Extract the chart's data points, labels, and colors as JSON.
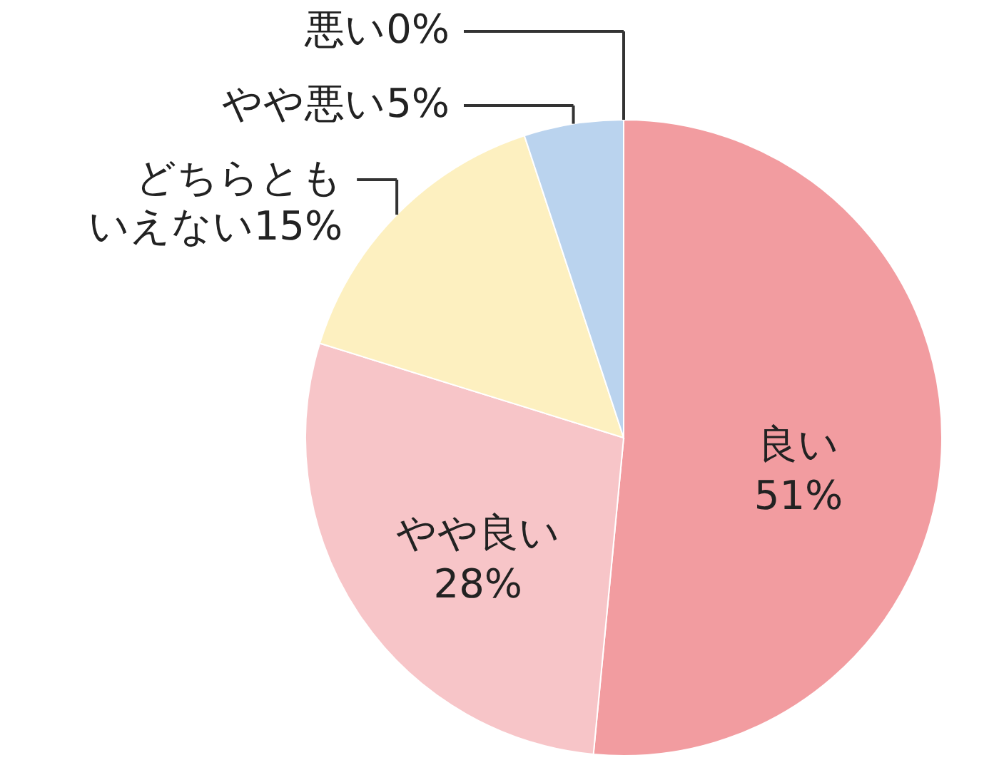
{
  "chart_data": {
    "type": "pie",
    "categories": [
      "良い",
      "やや良い",
      "どちらともいえない",
      "やや悪い",
      "悪い"
    ],
    "values": [
      51,
      28,
      15,
      5,
      0
    ],
    "colors": [
      "#f29ca0",
      "#f7c5c8",
      "#fdf0c0",
      "#bad3ee",
      "#a0a0a0"
    ],
    "value_labels": [
      "51%",
      "28%",
      "15%",
      "5%",
      "0%"
    ]
  }
}
